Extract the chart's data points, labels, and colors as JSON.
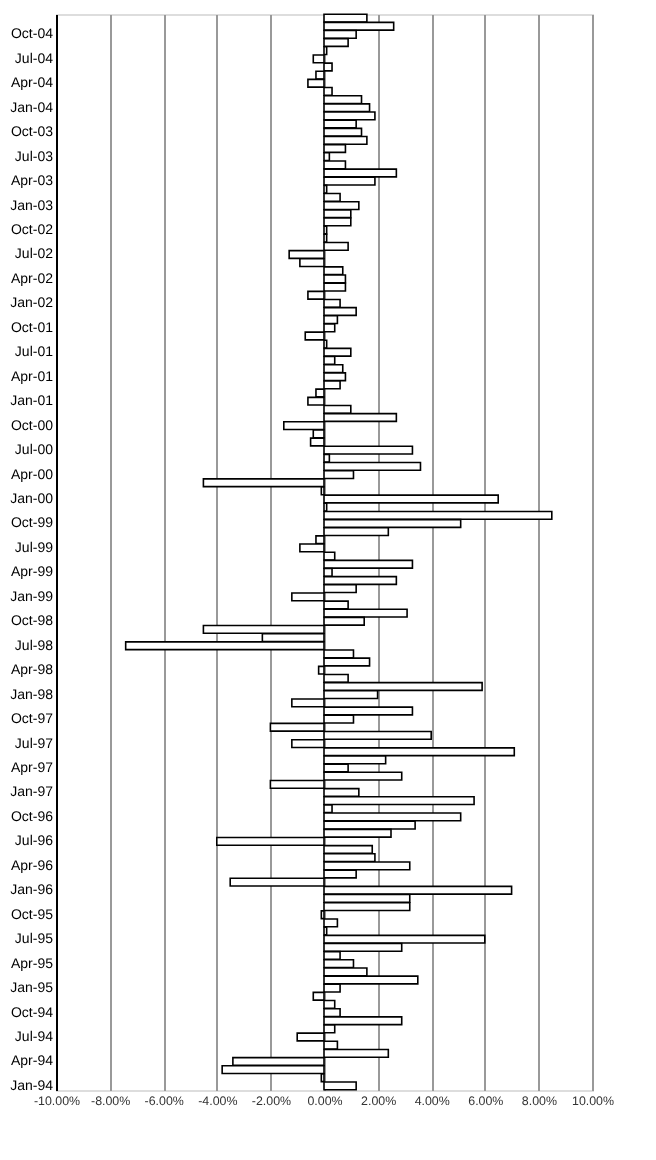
{
  "chart_data": {
    "type": "bar",
    "orientation": "horizontal",
    "color": "#ffffff",
    "categories": [
      null,
      null,
      "Oct-04",
      null,
      null,
      "Jul-04",
      null,
      null,
      "Apr-04",
      null,
      null,
      "Jan-04",
      null,
      null,
      "Oct-03",
      null,
      null,
      "Jul-03",
      null,
      null,
      "Apr-03",
      null,
      null,
      "Jan-03",
      null,
      null,
      "Oct-02",
      null,
      null,
      "Jul-02",
      null,
      null,
      "Apr-02",
      null,
      null,
      "Jan-02",
      null,
      null,
      "Oct-01",
      null,
      null,
      "Jul-01",
      null,
      null,
      "Apr-01",
      null,
      null,
      "Jan-01",
      null,
      null,
      "Oct-00",
      null,
      null,
      "Jul-00",
      null,
      null,
      "Apr-00",
      null,
      null,
      "Jan-00",
      null,
      null,
      "Oct-99",
      null,
      null,
      "Jul-99",
      null,
      null,
      "Apr-99",
      null,
      null,
      "Jan-99",
      null,
      null,
      "Oct-98",
      null,
      null,
      "Jul-98",
      null,
      null,
      "Apr-98",
      null,
      null,
      "Jan-98",
      null,
      null,
      "Oct-97",
      null,
      null,
      "Jul-97",
      null,
      null,
      "Apr-97",
      null,
      null,
      "Jan-97",
      null,
      null,
      "Oct-96",
      null,
      null,
      "Jul-96",
      null,
      null,
      "Apr-96",
      null,
      null,
      "Jan-96",
      null,
      null,
      "Oct-95",
      null,
      null,
      "Jul-95",
      null,
      null,
      "Apr-95",
      null,
      null,
      "Jan-95",
      null,
      null,
      "Oct-94",
      null,
      null,
      "Jul-94",
      null,
      null,
      "Apr-94",
      null,
      null,
      "Jan-94"
    ],
    "values": [
      1.6,
      2.6,
      1.2,
      0.9,
      0.1,
      -0.4,
      0.3,
      -0.3,
      -0.6,
      0.3,
      1.4,
      1.7,
      1.9,
      1.2,
      1.4,
      1.6,
      0.8,
      0.2,
      0.8,
      2.7,
      1.9,
      0.1,
      0.6,
      1.3,
      1.0,
      1.0,
      0.1,
      0.1,
      0.9,
      -1.3,
      -0.9,
      0.7,
      0.8,
      0.8,
      -0.6,
      0.6,
      1.2,
      0.5,
      0.4,
      -0.7,
      0.1,
      1.0,
      0.4,
      0.7,
      0.8,
      0.6,
      -0.3,
      -0.6,
      1.0,
      2.7,
      -1.5,
      -0.4,
      -0.5,
      3.3,
      0.2,
      3.6,
      1.1,
      -4.5,
      -0.1,
      6.5,
      0.1,
      8.5,
      5.1,
      2.4,
      -0.3,
      -0.9,
      0.4,
      3.3,
      0.3,
      2.7,
      1.2,
      -1.2,
      0.9,
      3.1,
      1.5,
      -4.5,
      -2.3,
      -7.4,
      1.1,
      1.7,
      -0.2,
      0.9,
      5.9,
      2.0,
      -1.2,
      3.3,
      1.1,
      -2.0,
      4.0,
      -1.2,
      7.1,
      2.3,
      0.9,
      2.9,
      -2.0,
      1.3,
      5.6,
      0.3,
      5.1,
      3.4,
      2.5,
      -4.0,
      1.8,
      1.9,
      3.2,
      1.2,
      -3.5,
      7.0,
      3.2,
      3.2,
      -0.1,
      0.5,
      0.1,
      6.0,
      2.9,
      0.6,
      1.1,
      1.6,
      3.5,
      0.6,
      -0.4,
      0.4,
      0.6,
      2.9,
      0.4,
      -1.0,
      0.5,
      2.4,
      -3.4,
      -3.8,
      -0.1,
      1.2
    ],
    "xlim": [
      -10,
      10
    ],
    "xticks": [
      {
        "value": -10,
        "label": "-10.00%"
      },
      {
        "value": -8,
        "label": "-8.00%"
      },
      {
        "value": -6,
        "label": "-6.00%"
      },
      {
        "value": -4,
        "label": "-4.00%"
      },
      {
        "value": -2,
        "label": "-2.00%"
      },
      {
        "value": 0,
        "label": "0.00%"
      },
      {
        "value": 2,
        "label": "2.00%"
      },
      {
        "value": 4,
        "label": "4.00%"
      },
      {
        "value": 6,
        "label": "6.00%"
      },
      {
        "value": 8,
        "label": "8.00%"
      },
      {
        "value": 10,
        "label": "10.00%"
      }
    ],
    "grid": "x"
  }
}
